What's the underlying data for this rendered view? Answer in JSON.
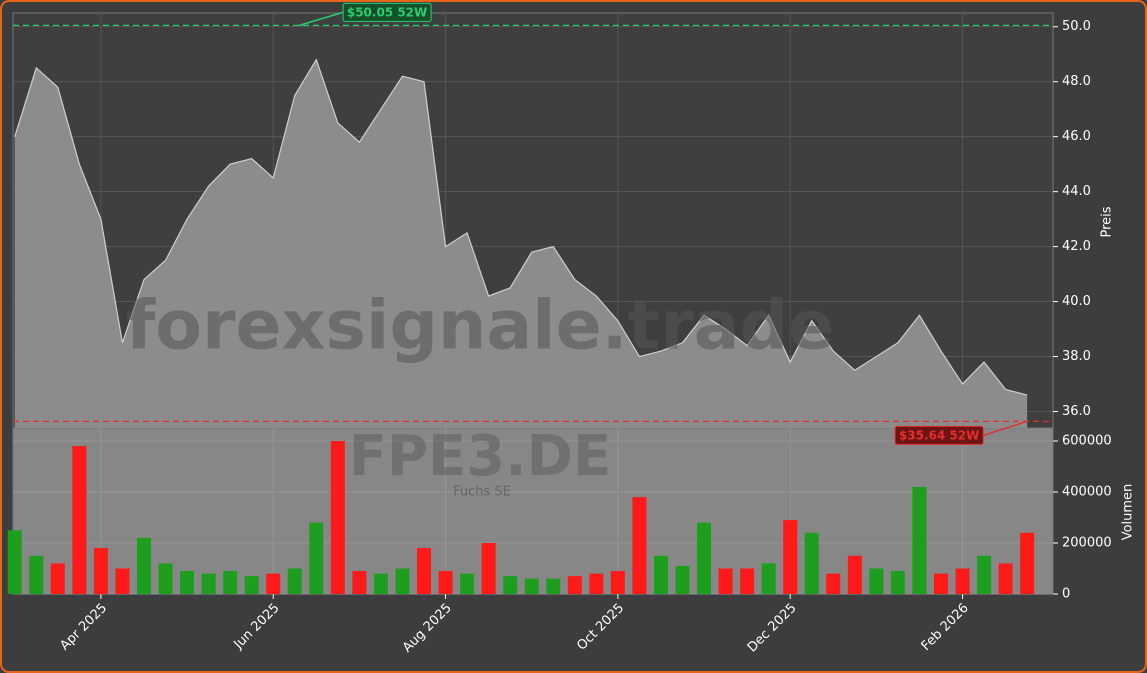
{
  "chart_data": [
    {
      "type": "area",
      "color": "#8c8c8c",
      "line_color": "#cfcfcf",
      "x": [
        0,
        0.25,
        0.5,
        0.75,
        1,
        1.25,
        1.5,
        1.75,
        2,
        2.25,
        2.5,
        2.75,
        3,
        3.25,
        3.5,
        3.75,
        4,
        4.25,
        4.5,
        4.75,
        5,
        5.25,
        5.5,
        5.75,
        6,
        6.25,
        6.5,
        6.75,
        7,
        7.25,
        7.5,
        7.75,
        8,
        8.25,
        8.5,
        8.75,
        9,
        9.25,
        9.5,
        9.75,
        10,
        10.25,
        10.5,
        10.75,
        11,
        11.25,
        11.5,
        11.75
      ],
      "values": [
        46.0,
        48.5,
        47.8,
        45.0,
        43.0,
        38.5,
        40.8,
        41.5,
        43.0,
        44.2,
        45.0,
        45.2,
        44.5,
        47.5,
        48.8,
        46.5,
        45.8,
        47.0,
        48.2,
        48.0,
        42.0,
        42.5,
        40.2,
        40.5,
        41.8,
        42.0,
        40.8,
        40.2,
        39.3,
        38.0,
        38.2,
        38.5,
        39.5,
        39.0,
        38.4,
        39.5,
        37.8,
        39.3,
        38.2,
        37.5,
        38.0,
        38.5,
        39.5,
        38.2,
        37.0,
        37.8,
        36.8,
        36.6
      ],
      "xlim": [
        -0.02,
        12.05
      ],
      "xticks": [
        {
          "value": 1,
          "label": "Apr 2025"
        },
        {
          "value": 3,
          "label": "Jun 2025"
        },
        {
          "value": 5,
          "label": "Aug 2025"
        },
        {
          "value": 7,
          "label": "Oct 2025"
        },
        {
          "value": 9,
          "label": "Dec 2025"
        },
        {
          "value": 11,
          "label": "Feb 2026"
        }
      ],
      "ylim": [
        35.4,
        50.5
      ],
      "yticks": [
        {
          "value": 36,
          "label": "36.0"
        },
        {
          "value": 38,
          "label": "38.0"
        },
        {
          "value": 40,
          "label": "40.0"
        },
        {
          "value": 42,
          "label": "42.0"
        },
        {
          "value": 44,
          "label": "44.0"
        },
        {
          "value": 46,
          "label": "46.0"
        },
        {
          "value": 48,
          "label": "48.0"
        },
        {
          "value": 50,
          "label": "50.0"
        }
      ],
      "y_label": "Preis",
      "grid": true,
      "annotations": [
        {
          "label": "$50.05 52W",
          "value": 50.05,
          "x": 3.3,
          "color": "#2ecc71"
        },
        {
          "label": "$35.64 52W",
          "value": 35.64,
          "x": 11.75,
          "color": "#e03030"
        }
      ],
      "watermark": "forexsignale.trade",
      "symbol": "FPE3.DE",
      "company": "Fuchs SE"
    },
    {
      "type": "bar",
      "up_color": "#1e9e1e",
      "down_color": "#ff1a1a",
      "values": [
        250000,
        150000,
        120000,
        580000,
        180000,
        100000,
        220000,
        120000,
        90000,
        80000,
        90000,
        70000,
        80000,
        100000,
        280000,
        600000,
        90000,
        80000,
        100000,
        180000,
        90000,
        80000,
        200000,
        70000,
        60000,
        60000,
        70000,
        80000,
        90000,
        380000,
        150000,
        110000,
        280000,
        100000,
        100000,
        120000,
        290000,
        240000,
        80000,
        150000,
        100000,
        90000,
        420000,
        80000,
        100000,
        150000,
        120000,
        240000
      ],
      "ylim": [
        0,
        651000
      ],
      "yticks": [
        0,
        200000,
        400000,
        600000
      ],
      "y_label": "Volumen",
      "grid": true
    }
  ]
}
